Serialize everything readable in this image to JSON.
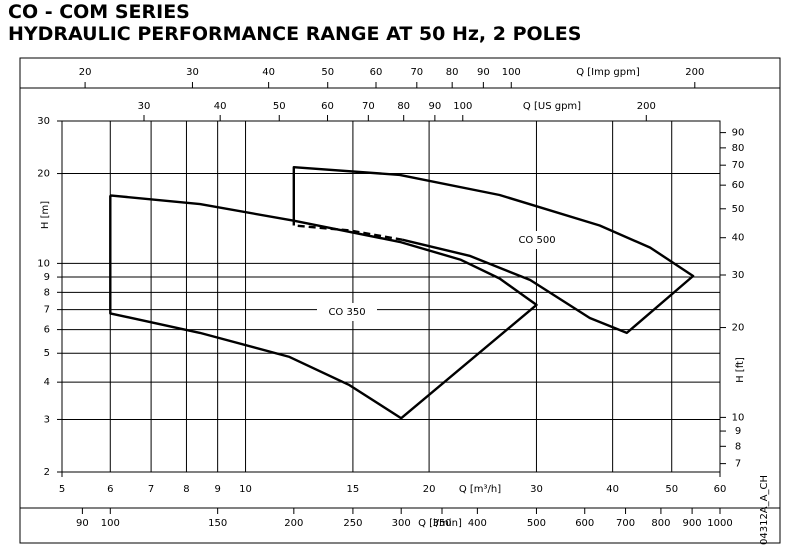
{
  "chart_data": {
    "type": "line",
    "title": "CO - COM SERIES",
    "subtitle": "HYDRAULIC PERFORMANCE RANGE AT 50 Hz, 2 POLES",
    "x_label": "Q [m³/h]",
    "xscale": "log",
    "xlim": [
      5,
      60
    ],
    "xticks": [
      5,
      6,
      7,
      8,
      9,
      10,
      15,
      20,
      30,
      40,
      50,
      60
    ],
    "y_label": "H [m]",
    "yscale": "log",
    "ylim": [
      2,
      30
    ],
    "yticks": [
      2,
      3,
      4,
      5,
      6,
      7,
      8,
      9,
      10,
      20,
      30
    ],
    "grid": true,
    "color": "#000000",
    "secondary_axes": [
      {
        "label": "Q [Imp gpm]",
        "lim": [
          18.33,
          219.97
        ],
        "ticks": [
          20,
          30,
          40,
          50,
          60,
          70,
          80,
          90,
          100,
          200
        ]
      },
      {
        "label": "Q [US gpm]",
        "lim": [
          22.01,
          264.2
        ],
        "ticks": [
          30,
          40,
          50,
          60,
          70,
          80,
          90,
          100,
          200
        ]
      },
      {
        "label": "Q [l/min]",
        "lim": [
          83.33,
          1000
        ],
        "ticks": [
          90,
          100,
          150,
          200,
          250,
          300,
          350,
          400,
          500,
          600,
          700,
          800,
          900,
          1000
        ]
      },
      {
        "label": "H [ft]",
        "lim": [
          6.562,
          98.43
        ],
        "ticks": [
          7,
          8,
          9,
          10,
          20,
          30,
          40,
          50,
          60,
          70,
          80,
          90
        ]
      }
    ],
    "series": [
      {
        "name": "CO 350",
        "segments": [
          {
            "style": "solid",
            "x": [
              6,
              6,
              8.42,
              11.8,
              14.8,
              18,
              30,
              26.1,
              22.5,
              17.9,
              12,
              8.42,
              6
            ],
            "y": [
              16.9,
              6.8,
              5.85,
              4.86,
              3.91,
              3.03,
              7.26,
              8.9,
              10.3,
              11.8,
              13.9,
              15.8,
              16.9
            ]
          }
        ]
      },
      {
        "name": "CO 500",
        "segments": [
          {
            "style": "solid",
            "x": [
              12,
              12,
              17.9,
              26.1,
              38.1,
              46.1,
              54.2,
              42.2,
              36.7,
              29.3,
              23.3,
              18.1
            ],
            "y": [
              13.4,
              21.0,
              19.8,
              16.95,
              13.4,
              11.3,
              9.07,
              5.85,
              6.56,
              8.8,
              10.6,
              12.0
            ]
          },
          {
            "style": "dashed",
            "x": [
              18.1,
              14.8,
              12
            ],
            "y": [
              12.0,
              12.9,
              13.4
            ]
          }
        ]
      }
    ],
    "annotation": "04312A_A_CH"
  }
}
